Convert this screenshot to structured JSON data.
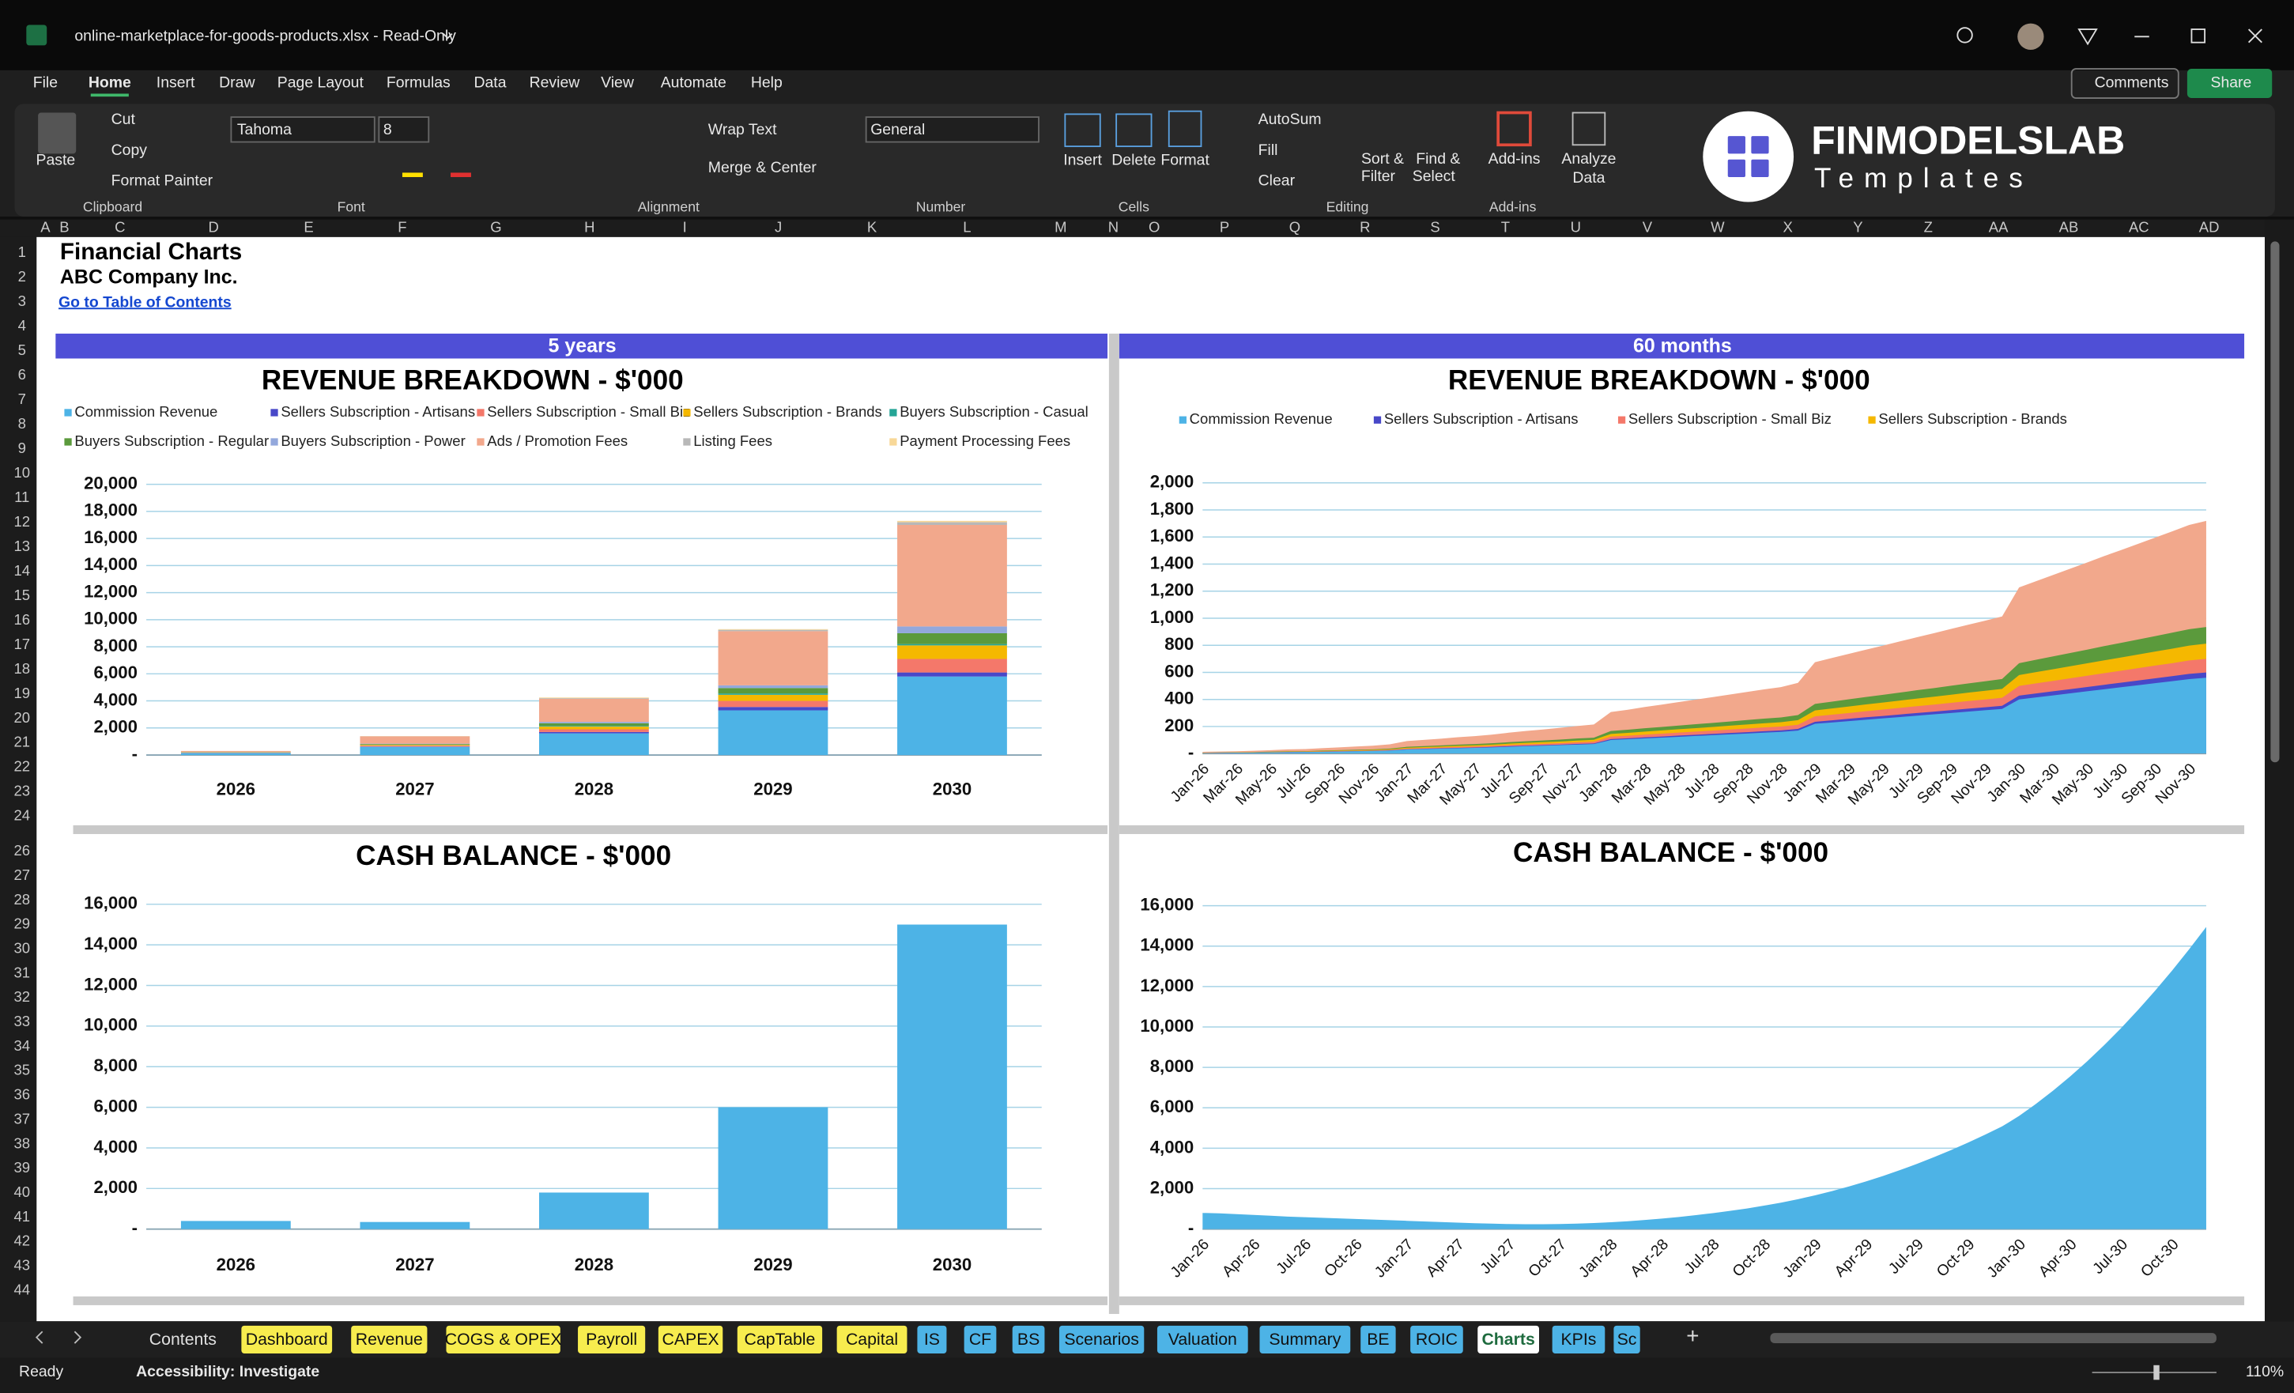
{
  "title_bar": {
    "title": "online-marketplace-for-goods-products.xlsx - Read-Only"
  },
  "menu": [
    "File",
    "Home",
    "Insert",
    "Draw",
    "Page Layout",
    "Formulas",
    "Data",
    "Review",
    "View",
    "Automate",
    "Help"
  ],
  "header_buttons": {
    "comments": "Comments",
    "share": "Share"
  },
  "ribbon": {
    "clipboard": {
      "paste": "Paste",
      "cut": "Cut",
      "copy": "Copy",
      "format_painter": "Format Painter",
      "label": "Clipboard"
    },
    "font": {
      "name": "Tahoma",
      "size": "8",
      "label": "Font"
    },
    "alignment": {
      "wrap": "Wrap Text",
      "merge": "Merge & Center",
      "label": "Alignment"
    },
    "number": {
      "format": "General",
      "label": "Number"
    },
    "cells": {
      "insert": "Insert",
      "delete": "Delete",
      "format": "Format",
      "label": "Cells"
    },
    "editing": {
      "autosum": "AutoSum",
      "fill": "Fill",
      "clear": "Clear",
      "sort_line1": "Sort &",
      "sort_line2": "Filter",
      "find_line1": "Find &",
      "find_line2": "Select",
      "label": "Editing"
    },
    "addins": {
      "button": "Add-ins",
      "label": "Add-ins"
    },
    "analyze": {
      "line1": "Analyze",
      "line2": "Data"
    },
    "logo": {
      "brand": "FINMODELSLAB",
      "tagline": "Templates"
    }
  },
  "columns": [
    "A",
    "B",
    "C",
    "D",
    "E",
    "F",
    "G",
    "H",
    "I",
    "J",
    "K",
    "L",
    "M",
    "N",
    "O",
    "P",
    "Q",
    "R",
    "S",
    "T",
    "U",
    "V",
    "W",
    "X",
    "Y",
    "Z",
    "AA",
    "AB",
    "AC",
    "AD"
  ],
  "rows": [
    1,
    2,
    3,
    4,
    5,
    6,
    7,
    8,
    9,
    10,
    11,
    12,
    13,
    14,
    15,
    16,
    17,
    18,
    19,
    20,
    21,
    22,
    23,
    24,
    26,
    27,
    28,
    29,
    30,
    31,
    32,
    33,
    34,
    35,
    36,
    37,
    38,
    39,
    40,
    41,
    42,
    43,
    44
  ],
  "sheet": {
    "title": "Financial Charts",
    "company": "ABC Company Inc.",
    "link": "Go to Table of Contents",
    "banner_left": "5 years",
    "banner_right": "60 months"
  },
  "chart_data": [
    {
      "type": "bar",
      "stacked": true,
      "title": "REVENUE BREAKDOWN - $'000",
      "grid": true,
      "categories": [
        "2026",
        "2027",
        "2028",
        "2029",
        "2030"
      ],
      "ylim": [
        0,
        20000
      ],
      "yticks": [
        {
          "value": 0,
          "label": "-"
        },
        {
          "value": 2000,
          "label": "2,000"
        },
        {
          "value": 4000,
          "label": "4,000"
        },
        {
          "value": 6000,
          "label": "6,000"
        },
        {
          "value": 8000,
          "label": "8,000"
        },
        {
          "value": 10000,
          "label": "10,000"
        },
        {
          "value": 12000,
          "label": "12,000"
        },
        {
          "value": 14000,
          "label": "14,000"
        },
        {
          "value": 16000,
          "label": "16,000"
        },
        {
          "value": 18000,
          "label": "18,000"
        },
        {
          "value": 20000,
          "label": "20,000"
        }
      ],
      "series": [
        {
          "name": "Commission Revenue",
          "color": "#4db3e6",
          "values": [
            150,
            600,
            1600,
            3300,
            5800
          ]
        },
        {
          "name": "Sellers Subscription - Artisans",
          "color": "#4848c8",
          "values": [
            10,
            30,
            100,
            250,
            300
          ]
        },
        {
          "name": "Sellers Subscription - Small Biz",
          "color": "#f4786a",
          "values": [
            20,
            60,
            200,
            450,
            1000
          ]
        },
        {
          "name": "Sellers Subscription - Brands",
          "color": "#f5b800",
          "values": [
            20,
            60,
            200,
            450,
            1000
          ]
        },
        {
          "name": "Buyers Subscription - Casual",
          "color": "#25a596",
          "values": [
            5,
            10,
            50,
            100,
            100
          ]
        },
        {
          "name": "Buyers Subscription - Regular",
          "color": "#5b9a3c",
          "values": [
            15,
            50,
            200,
            400,
            800
          ]
        },
        {
          "name": "Buyers Subscription - Power",
          "color": "#93a8dc",
          "values": [
            10,
            30,
            100,
            200,
            500
          ]
        },
        {
          "name": "Ads / Promotion Fees",
          "color": "#f2a88c",
          "values": [
            70,
            540,
            1700,
            4000,
            7500
          ]
        },
        {
          "name": "Listing Fees",
          "color": "#b8b8b8",
          "values": [
            0,
            10,
            50,
            100,
            200
          ]
        },
        {
          "name": "Payment Processing Fees",
          "color": "#f8d898",
          "values": [
            0,
            10,
            50,
            50,
            100
          ]
        }
      ]
    },
    {
      "type": "area",
      "stacked": true,
      "title": "REVENUE BREAKDOWN - $'000",
      "grid": true,
      "categories": [
        "Jan-26",
        null,
        "Mar-26",
        null,
        "May-26",
        null,
        "Jul-26",
        null,
        "Sep-26",
        null,
        "Nov-26",
        null,
        "Jan-27",
        null,
        "Mar-27",
        null,
        "May-27",
        null,
        "Jul-27",
        null,
        "Sep-27",
        null,
        "Nov-27",
        null,
        "Jan-28",
        null,
        "Mar-28",
        null,
        "May-28",
        null,
        "Jul-28",
        null,
        "Sep-28",
        null,
        "Nov-28",
        null,
        "Jan-29",
        null,
        "Mar-29",
        null,
        "May-29",
        null,
        "Jul-29",
        null,
        "Sep-29",
        null,
        "Nov-29",
        null,
        "Jan-30",
        null,
        "Mar-30",
        null,
        "May-30",
        null,
        "Jul-30",
        null,
        "Sep-30",
        null,
        "Nov-30",
        null
      ],
      "ylim": [
        0,
        2000
      ],
      "yticks": [
        {
          "value": 0,
          "label": "-"
        },
        200,
        400,
        600,
        800,
        {
          "value": 1000,
          "label": "1,000"
        },
        {
          "value": 1200,
          "label": "1,200"
        },
        {
          "value": 1400,
          "label": "1,400"
        },
        {
          "value": 1600,
          "label": "1,600"
        },
        {
          "value": 1800,
          "label": "1,800"
        },
        {
          "value": 2000,
          "label": "2,000"
        }
      ],
      "series": [
        {
          "name": "Commission Revenue",
          "color": "#4db3e6",
          "values": [
            4,
            5,
            6,
            7,
            8,
            10,
            11,
            13,
            15,
            17,
            19,
            22,
            30,
            33,
            36,
            39,
            42,
            46,
            50,
            54,
            58,
            62,
            66,
            70,
            100,
            106,
            112,
            118,
            124,
            130,
            136,
            142,
            148,
            154,
            160,
            170,
            220,
            230,
            240,
            250,
            260,
            270,
            280,
            290,
            300,
            310,
            320,
            330,
            400,
            415,
            430,
            445,
            460,
            475,
            490,
            505,
            520,
            535,
            550,
            560
          ]
        },
        {
          "name": "Sellers Subscription - Artisans",
          "color": "#4848c8",
          "values": [
            0,
            0,
            0,
            0,
            1,
            1,
            1,
            1,
            1,
            1,
            1,
            2,
            2,
            2,
            3,
            3,
            3,
            3,
            4,
            4,
            4,
            4,
            5,
            5,
            7,
            7,
            8,
            8,
            9,
            9,
            10,
            10,
            10,
            11,
            11,
            12,
            15,
            16,
            17,
            18,
            18,
            19,
            20,
            20,
            21,
            22,
            22,
            23,
            28,
            29,
            30,
            31,
            32,
            33,
            34,
            35,
            36,
            37,
            39,
            39
          ]
        },
        {
          "name": "Sellers Subscription - Small Biz",
          "color": "#f4786a",
          "values": [
            1,
            1,
            1,
            1,
            1,
            2,
            2,
            2,
            3,
            3,
            3,
            4,
            5,
            6,
            6,
            7,
            8,
            8,
            9,
            10,
            10,
            11,
            12,
            13,
            18,
            19,
            20,
            21,
            22,
            23,
            24,
            26,
            27,
            28,
            29,
            31,
            40,
            41,
            43,
            45,
            47,
            49,
            50,
            52,
            54,
            56,
            58,
            59,
            72,
            75,
            77,
            80,
            83,
            86,
            88,
            91,
            94,
            96,
            99,
            101
          ]
        },
        {
          "name": "Sellers Subscription - Brands",
          "color": "#f5b800",
          "values": [
            1,
            1,
            1,
            1,
            2,
            2,
            2,
            3,
            3,
            3,
            4,
            4,
            6,
            7,
            7,
            8,
            8,
            9,
            10,
            11,
            12,
            12,
            13,
            14,
            20,
            21,
            22,
            24,
            25,
            26,
            27,
            28,
            30,
            31,
            32,
            34,
            44,
            46,
            48,
            50,
            52,
            54,
            56,
            58,
            60,
            62,
            64,
            66,
            80,
            83,
            86,
            89,
            92,
            95,
            98,
            101,
            104,
            107,
            110,
            112
          ]
        },
        {
          "color": "#5b9a3c",
          "values": [
            1,
            1,
            1,
            2,
            2,
            2,
            2,
            3,
            3,
            4,
            4,
            5,
            7,
            7,
            8,
            9,
            9,
            10,
            11,
            12,
            13,
            14,
            15,
            15,
            22,
            23,
            25,
            26,
            27,
            29,
            30,
            31,
            33,
            34,
            35,
            37,
            48,
            51,
            53,
            55,
            57,
            59,
            62,
            64,
            66,
            68,
            70,
            73,
            88,
            91,
            95,
            98,
            101,
            105,
            108,
            111,
            114,
            118,
            121,
            123
          ]
        },
        {
          "color": "#f2a88c",
          "values": [
            6,
            7,
            8,
            10,
            11,
            14,
            15,
            18,
            21,
            24,
            27,
            31,
            42,
            46,
            50,
            55,
            59,
            64,
            70,
            76,
            81,
            87,
            92,
            98,
            140,
            148,
            157,
            165,
            174,
            182,
            190,
            199,
            207,
            216,
            224,
            238,
            308,
            322,
            336,
            350,
            364,
            378,
            392,
            406,
            420,
            434,
            448,
            462,
            560,
            581,
            602,
            623,
            644,
            665,
            686,
            707,
            728,
            749,
            770,
            784
          ]
        }
      ]
    },
    {
      "type": "bar",
      "title": "CASH BALANCE - $'000",
      "grid": true,
      "color": "#4db3e6",
      "categories": [
        "2026",
        "2027",
        "2028",
        "2029",
        "2030"
      ],
      "values": [
        400,
        350,
        1800,
        6000,
        15000
      ],
      "ylim": [
        0,
        16000
      ],
      "yticks": [
        {
          "value": 0,
          "label": "-"
        },
        {
          "value": 2000,
          "label": "2,000"
        },
        {
          "value": 4000,
          "label": "4,000"
        },
        {
          "value": 6000,
          "label": "6,000"
        },
        {
          "value": 8000,
          "label": "8,000"
        },
        {
          "value": 10000,
          "label": "10,000"
        },
        {
          "value": 12000,
          "label": "12,000"
        },
        {
          "value": 14000,
          "label": "14,000"
        },
        {
          "value": 16000,
          "label": "16,000"
        }
      ]
    },
    {
      "type": "area",
      "title": "CASH BALANCE - $'000",
      "grid": true,
      "color": "#4db3e6",
      "categories": [
        "Jan-26",
        null,
        null,
        "Apr-26",
        null,
        null,
        "Jul-26",
        null,
        null,
        "Oct-26",
        null,
        null,
        "Jan-27",
        null,
        null,
        "Apr-27",
        null,
        null,
        "Jul-27",
        null,
        null,
        "Oct-27",
        null,
        null,
        "Jan-28",
        null,
        null,
        "Apr-28",
        null,
        null,
        "Jul-28",
        null,
        null,
        "Oct-28",
        null,
        null,
        "Jan-29",
        null,
        null,
        "Apr-29",
        null,
        null,
        "Jul-29",
        null,
        null,
        "Oct-29",
        null,
        null,
        "Jan-30",
        null,
        null,
        "Apr-30",
        null,
        null,
        "Jul-30",
        null,
        null,
        "Oct-30",
        null,
        null
      ],
      "values": [
        800,
        780,
        740,
        700,
        660,
        620,
        590,
        560,
        530,
        500,
        470,
        440,
        410,
        380,
        350,
        320,
        290,
        270,
        250,
        240,
        240,
        250,
        270,
        300,
        340,
        390,
        450,
        520,
        600,
        690,
        790,
        900,
        1020,
        1160,
        1310,
        1480,
        1670,
        1880,
        2110,
        2360,
        2630,
        2920,
        3230,
        3560,
        3910,
        4280,
        4670,
        5080,
        5600,
        6200,
        6850,
        7550,
        8300,
        9100,
        9950,
        10850,
        11800,
        12800,
        13850,
        14950
      ],
      "ylim": [
        0,
        16000
      ],
      "yticks": [
        {
          "value": 0,
          "label": "-"
        },
        {
          "value": 2000,
          "label": "2,000"
        },
        {
          "value": 4000,
          "label": "4,000"
        },
        {
          "value": 6000,
          "label": "6,000"
        },
        {
          "value": 8000,
          "label": "8,000"
        },
        {
          "value": 10000,
          "label": "10,000"
        },
        {
          "value": 12000,
          "label": "12,000"
        },
        {
          "value": 14000,
          "label": "14,000"
        },
        {
          "value": 16000,
          "label": "16,000"
        }
      ]
    }
  ],
  "sheet_tabs": [
    "Contents",
    "Dashboard",
    "Revenue",
    "COGS & OPEX",
    "Payroll",
    "CAPEX",
    "CapTable",
    "Capital",
    "IS",
    "CF",
    "BS",
    "Scenarios",
    "Valuation",
    "Summary",
    "BE",
    "ROIC",
    "Charts",
    "KPIs",
    "Sc"
  ],
  "status": {
    "ready": "Ready",
    "accessibility": "Accessibility: Investigate",
    "zoom": "110%"
  }
}
